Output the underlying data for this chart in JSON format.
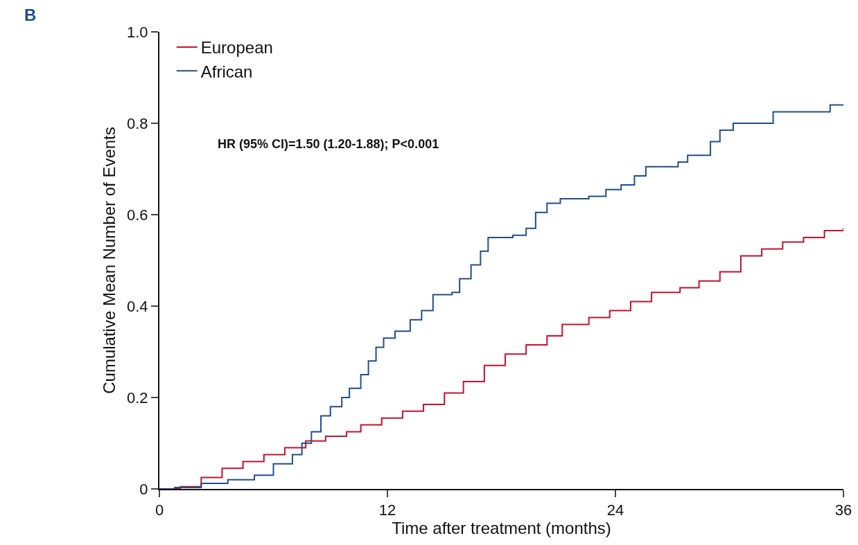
{
  "chart_data": {
    "type": "step",
    "xlabel": "Time after treatment (months)",
    "ylabel": "Cumulative Mean Number of Events",
    "annotations": [
      "B",
      "HR (95% CI)=1.50 (1.20-1.88); P<0.001"
    ],
    "xlim": [
      0,
      36
    ],
    "xticks": [
      0,
      12,
      24,
      36
    ],
    "ylim": [
      0,
      1
    ],
    "yticks": [
      0,
      0.2,
      0.4,
      0.6,
      0.8,
      {
        "value": 1,
        "label": "1.0"
      }
    ],
    "grid": false,
    "legend": "top left",
    "marker": "none",
    "line_style": "solid",
    "series": [
      {
        "name": "European",
        "color": "#c8102e",
        "x": [
          0,
          1.1,
          2.2,
          3.3,
          4.4,
          5.5,
          6.6,
          7.7,
          8.75,
          9.85,
          10.6,
          11.7,
          12.8,
          13.9,
          15.0,
          16.0,
          17.1,
          18.2,
          19.3,
          20.4,
          21.2,
          22.6,
          23.7,
          24.8,
          25.9,
          27.4,
          28.4,
          29.5,
          30.6,
          31.7,
          32.8,
          33.9,
          35.0,
          36
        ],
        "values": [
          0,
          0.005,
          0.025,
          0.045,
          0.06,
          0.075,
          0.09,
          0.105,
          0.115,
          0.125,
          0.14,
          0.155,
          0.17,
          0.185,
          0.21,
          0.235,
          0.27,
          0.295,
          0.315,
          0.335,
          0.36,
          0.375,
          0.39,
          0.41,
          0.43,
          0.44,
          0.455,
          0.475,
          0.51,
          0.525,
          0.54,
          0.55,
          0.565,
          0.57
        ]
      },
      {
        "name": "African",
        "color": "#1f4e8c",
        "x": [
          0,
          0.8,
          2.2,
          3.6,
          5.0,
          6.0,
          7.0,
          7.5,
          8.0,
          8.5,
          9.0,
          9.6,
          10.0,
          10.6,
          11.0,
          11.4,
          11.8,
          12.4,
          13.2,
          13.8,
          14.4,
          15.4,
          15.8,
          16.4,
          16.9,
          17.3,
          18.6,
          19.3,
          19.8,
          20.4,
          21.1,
          22.6,
          23.5,
          24.3,
          25.0,
          25.6,
          27.3,
          27.8,
          29.0,
          29.5,
          30.2,
          32.3,
          35.3,
          36
        ],
        "values": [
          0,
          0.003,
          0.012,
          0.02,
          0.03,
          0.055,
          0.075,
          0.1,
          0.125,
          0.16,
          0.18,
          0.2,
          0.22,
          0.25,
          0.28,
          0.31,
          0.33,
          0.345,
          0.37,
          0.39,
          0.425,
          0.43,
          0.46,
          0.49,
          0.52,
          0.55,
          0.555,
          0.57,
          0.605,
          0.625,
          0.635,
          0.64,
          0.655,
          0.665,
          0.685,
          0.705,
          0.715,
          0.73,
          0.76,
          0.785,
          0.8,
          0.825,
          0.84,
          0.84
        ]
      }
    ]
  }
}
